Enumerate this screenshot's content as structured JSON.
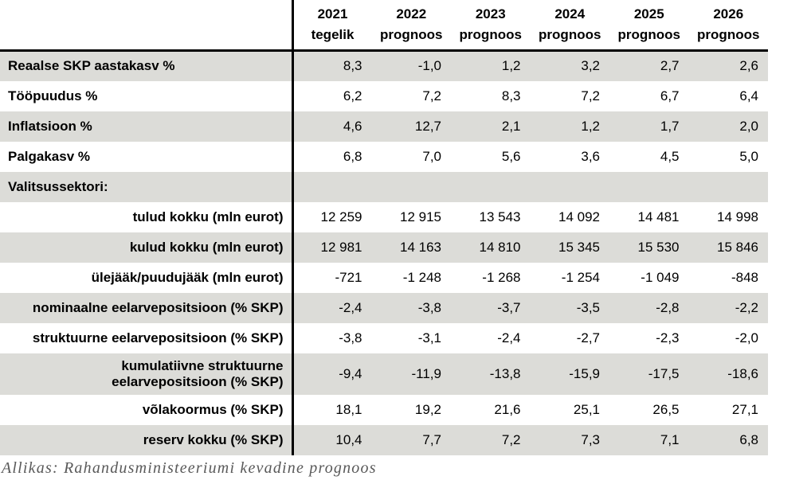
{
  "header": {
    "columns": [
      {
        "year": "2021",
        "sub": "tegelik"
      },
      {
        "year": "2022",
        "sub": "prognoos"
      },
      {
        "year": "2023",
        "sub": "prognoos"
      },
      {
        "year": "2024",
        "sub": "prognoos"
      },
      {
        "year": "2025",
        "sub": "prognoos"
      },
      {
        "year": "2026",
        "sub": "prognoos"
      }
    ]
  },
  "rows": [
    {
      "label": "Reaalse SKP aastakasv %",
      "values": [
        "8,3",
        "-1,0",
        "1,2",
        "3,2",
        "2,7",
        "2,6"
      ]
    },
    {
      "label": "Tööpuudus %",
      "values": [
        "6,2",
        "7,2",
        "8,3",
        "7,2",
        "6,7",
        "6,4"
      ]
    },
    {
      "label": "Inflatsioon %",
      "values": [
        "4,6",
        "12,7",
        "2,1",
        "1,2",
        "1,7",
        "2,0"
      ]
    },
    {
      "label": "Palgakasv %",
      "values": [
        "6,8",
        "7,0",
        "5,6",
        "3,6",
        "4,5",
        "5,0"
      ]
    },
    {
      "label": "Valitsussektori:",
      "values": [
        "",
        "",
        "",
        "",
        "",
        ""
      ]
    },
    {
      "label": "tulud kokku (mln eurot)",
      "values": [
        "12 259",
        "12 915",
        "13 543",
        "14 092",
        "14 481",
        "14 998"
      ]
    },
    {
      "label": "kulud kokku (mln eurot)",
      "values": [
        "12 981",
        "14 163",
        "14 810",
        "15 345",
        "15 530",
        "15 846"
      ]
    },
    {
      "label": "ülejääk/puudujääk (mln eurot)",
      "values": [
        "-721",
        "-1 248",
        "-1 268",
        "-1 254",
        "-1 049",
        "-848"
      ]
    },
    {
      "label": "nominaalne eelarvepositsioon (% SKP)",
      "values": [
        "-2,4",
        "-3,8",
        "-3,7",
        "-3,5",
        "-2,8",
        "-2,2"
      ]
    },
    {
      "label": "struktuurne eelarvepositsioon (% SKP)",
      "values": [
        "-3,8",
        "-3,1",
        "-2,4",
        "-2,7",
        "-2,3",
        "-2,0"
      ]
    },
    {
      "label_line1": "kumulatiivne struktuurne",
      "label_line2": "eelarvepositsioon (% SKP)",
      "values": [
        "-9,4",
        "-11,9",
        "-13,8",
        "-15,9",
        "-17,5",
        "-18,6"
      ]
    },
    {
      "label": "võlakoormus (% SKP)",
      "values": [
        "18,1",
        "19,2",
        "21,6",
        "25,1",
        "26,5",
        "27,1"
      ]
    },
    {
      "label": "reserv kokku (% SKP)",
      "values": [
        "10,4",
        "7,7",
        "7,2",
        "7,3",
        "7,1",
        "6,8"
      ]
    }
  ],
  "source": "Allikas: Rahandusministeeriumi kevadine prognoos",
  "colors": {
    "row_shade": "#dcdcd8",
    "rule": "#000000",
    "source_text": "#595959"
  }
}
